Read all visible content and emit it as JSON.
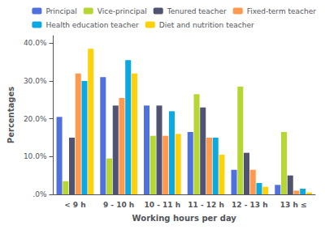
{
  "chart_data": {
    "type": "bar",
    "xlabel": "Working hours per day",
    "ylabel": "Percentages",
    "categories": [
      "< 9 h",
      "9 - 10 h",
      "10 - 11 h",
      "11 - 12 h",
      "12 - 13 h",
      "13 h ≤"
    ],
    "series": [
      {
        "name": "Principal",
        "values": [
          20.5,
          31.0,
          23.5,
          16.5,
          6.5,
          2.5
        ]
      },
      {
        "name": "Vice-principal",
        "values": [
          3.5,
          9.5,
          15.5,
          26.5,
          28.5,
          16.5
        ]
      },
      {
        "name": "Tenured teacher",
        "values": [
          15.0,
          23.5,
          23.5,
          23.0,
          11.0,
          5.0
        ]
      },
      {
        "name": "Fixed-term teacher",
        "values": [
          32.0,
          25.5,
          15.5,
          15.0,
          6.5,
          1.0
        ]
      },
      {
        "name": "Health education teacher",
        "values": [
          30.0,
          35.5,
          22.0,
          15.0,
          3.0,
          1.5
        ]
      },
      {
        "name": "Diet and nutrition teacher",
        "values": [
          38.5,
          32.0,
          16.0,
          10.5,
          2.0,
          0.5
        ]
      }
    ],
    "ylim": [
      0,
      42
    ],
    "yticks": [
      {
        "value": 0,
        "label": ".0%"
      },
      {
        "value": 10,
        "label": "10.0%"
      },
      {
        "value": 20,
        "label": "20.0%"
      },
      {
        "value": 30,
        "label": "30.0%"
      },
      {
        "value": 40,
        "label": "40.0%"
      }
    ],
    "grid": false,
    "legend": "upper right"
  }
}
